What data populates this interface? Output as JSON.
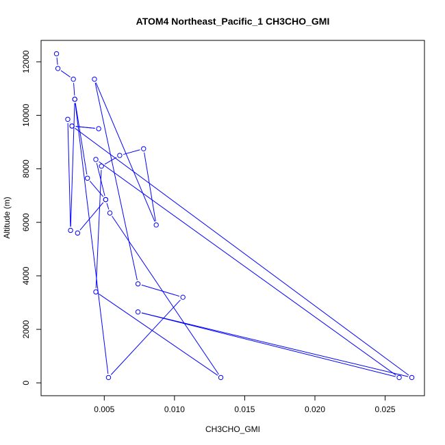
{
  "chart_data": {
    "type": "line",
    "title": "ATOM4 Northeast_Pacific_1 CH3CHO_GMI",
    "xlabel": "CH3CHO_GMI",
    "ylabel": "Altitude (m)",
    "xlim": [
      0.0005,
      0.0278
    ],
    "ylim": [
      -480,
      12800
    ],
    "x_ticks": [
      0.005,
      0.01,
      0.015,
      0.02,
      0.025
    ],
    "x_tick_labels": [
      "0.005",
      "0.010",
      "0.015",
      "0.020",
      "0.025"
    ],
    "y_ticks": [
      0,
      2000,
      4000,
      6000,
      8000,
      10000,
      12000
    ],
    "y_tick_labels": [
      "0",
      "2000",
      "4000",
      "6000",
      "8000",
      "10000",
      "12000"
    ],
    "markers": "open-circle",
    "series_color": "#0000ff",
    "grid": false,
    "legend": false,
    "series": [
      {
        "x": [
          0.0016,
          0.0017,
          0.0028,
          0.0029,
          0.0038,
          0.0051,
          0.0054,
          0.0133,
          0.0044,
          0.0048,
          0.0061,
          0.0078,
          0.0087,
          0.0043,
          0.0074,
          0.0106,
          0.0053,
          0.0029,
          0.0026,
          0.0024,
          0.0027,
          0.0046,
          0.0027,
          0.0269,
          0.0074,
          0.026,
          0.0044,
          0.0051,
          0.0031
        ],
        "y": [
          12300,
          11750,
          11350,
          10600,
          7650,
          6850,
          6350,
          200,
          3400,
          8100,
          8500,
          8750,
          5900,
          11350,
          3700,
          3200,
          200,
          10600,
          5700,
          9850,
          9600,
          9500,
          9600,
          200,
          2650,
          200,
          8350,
          6850,
          5600
        ]
      }
    ]
  }
}
